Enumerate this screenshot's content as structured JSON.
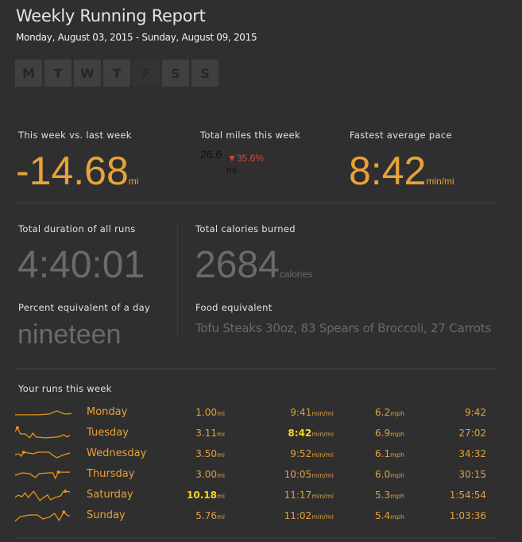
{
  "header": {
    "title": "Weekly Running Report",
    "date_range": "Monday, August 03, 2015 - Sunday, August 09, 2015"
  },
  "days": [
    {
      "label": "M",
      "active": true
    },
    {
      "label": "T",
      "active": true
    },
    {
      "label": "W",
      "active": true
    },
    {
      "label": "T",
      "active": true
    },
    {
      "label": "F",
      "active": false
    },
    {
      "label": "S",
      "active": true
    },
    {
      "label": "S",
      "active": true
    }
  ],
  "stats": {
    "vs_last_week": {
      "label": "This week vs. last week",
      "value": "-14.68",
      "unit": "mi"
    },
    "total_miles": {
      "label": "Total miles this week",
      "value": "26.6",
      "unit": "mi",
      "change": "▼35.6%",
      "change_color": "#d9433a"
    },
    "fastest_pace": {
      "label": "Fastest average pace",
      "value": "8:42",
      "unit": "min/mi"
    },
    "total_duration": {
      "label": "Total duration of all runs",
      "value": "4:40:01"
    },
    "total_calories": {
      "label": "Total calories burned",
      "value": "2684",
      "unit": "calories"
    },
    "percent_day": {
      "label": "Percent equivalent of a day",
      "value": "nineteen"
    },
    "food_equivalent": {
      "label": "Food equivalent",
      "value": "Tofu Steaks 30oz, 83 Spears of Broccoli, 27 Carrots"
    }
  },
  "runs": {
    "heading": "Your runs this week",
    "rows": [
      {
        "day": "Monday",
        "distance": "1.00",
        "distance_unit": "mi",
        "pace": "9:41",
        "pace_unit": "min/mi",
        "speed": "6.2",
        "speed_unit": "mph",
        "duration": "9:42",
        "best_distance": false,
        "best_pace": false,
        "spark": "1,14 30,14 45,13 55,9 65,13 80,12 95,7",
        "dot": "95,7"
      },
      {
        "day": "Tuesday",
        "distance": "3.11",
        "distance_unit": "mi",
        "pace": "8:42",
        "pace_unit": "min/mi",
        "speed": "6.9",
        "speed_unit": "mph",
        "duration": "27:02",
        "best_distance": false,
        "best_pace": true,
        "spark": "1,9 4,4 8,12 14,12 20,17 24,11 28,16 40,17 55,16 60,15 64,13 68,16 72,14",
        "dot": "4,4"
      },
      {
        "day": "Wednesday",
        "distance": "3.50",
        "distance_unit": "mi",
        "pace": "9:52",
        "pace_unit": "min/mi",
        "speed": "6.1",
        "speed_unit": "mph",
        "duration": "34:32",
        "best_distance": false,
        "best_pace": false,
        "spark": "1,12 6,11 9,14 12,9 25,11 30,9 45,9 50,13 55,16 65,12 72,10",
        "dot": "12,9"
      },
      {
        "day": "Thursday",
        "distance": "3.00",
        "distance_unit": "mi",
        "pace": "10:05",
        "pace_unit": "min/mi",
        "speed": "6.0",
        "speed_unit": "mph",
        "duration": "30:15",
        "best_distance": false,
        "best_pace": false,
        "spark": "1,12 10,9 20,10 27,15 32,10 45,9 50,9 53,16 57,8 72,8",
        "dot": "57,8"
      },
      {
        "day": "Saturday",
        "distance": "10.18",
        "distance_unit": "mi",
        "pace": "11:17",
        "pace_unit": "min/mi",
        "speed": "5.3",
        "speed_unit": "mph",
        "duration": "1:54:54",
        "best_distance": true,
        "best_pace": false,
        "spark": "1,14 5,11 10,13 14,8 18,14 25,6 33,18 38,14 43,11 47,17 53,14 60,12 63,7 67,6 72,7",
        "dot": "66,6"
      },
      {
        "day": "Sunday",
        "distance": "5.76",
        "distance_unit": "mi",
        "pace": "11:02",
        "pace_unit": "min/mi",
        "speed": "5.4",
        "speed_unit": "mph",
        "duration": "1:03:36",
        "best_distance": false,
        "best_pace": false,
        "spark": "1,18 8,12 20,10 30,10 37,15 45,13 52,8 58,17 64,6 69,11 72,11",
        "dot": "64,6"
      }
    ]
  },
  "colors": {
    "accent": "#e8a23a",
    "highlight": "#ffd21a",
    "muted_value": "#6a6a6a",
    "negative": "#d9433a",
    "background": "#2f2f2f"
  }
}
